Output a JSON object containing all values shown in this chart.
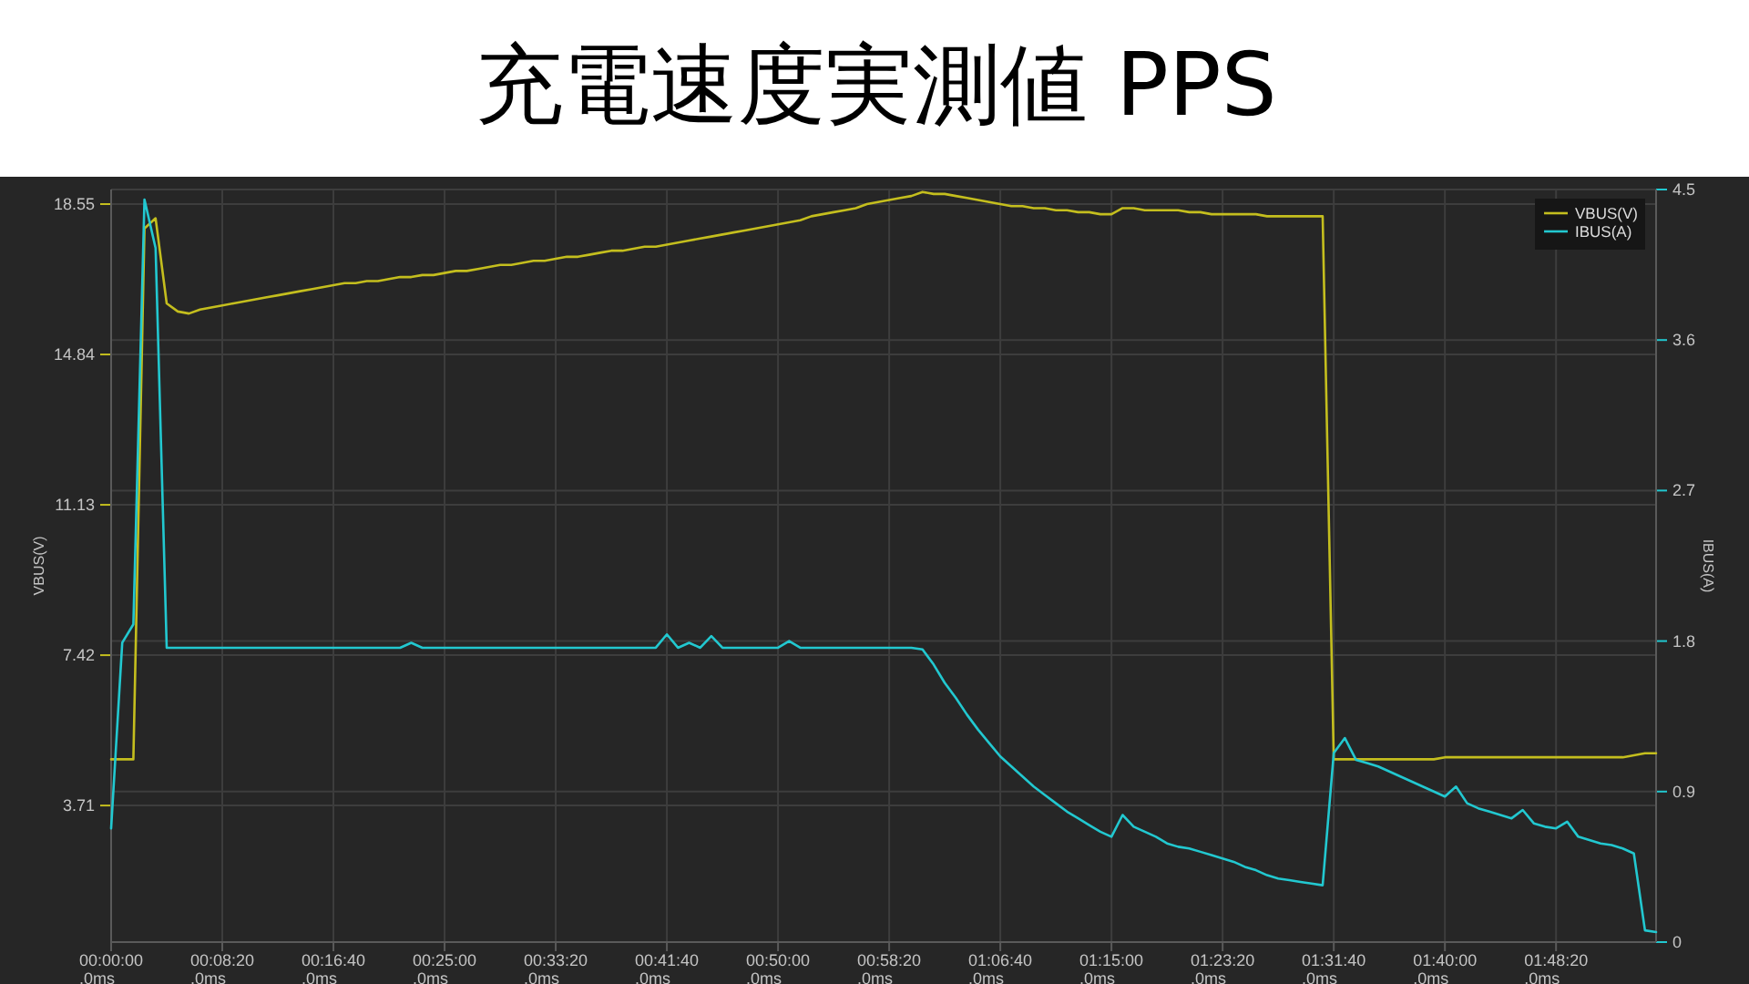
{
  "chart_data": {
    "type": "line",
    "title": "充電速度実測値 PPS",
    "ylabel": "VBUS(V)",
    "y2label": "IBUS(A)",
    "categories": [
      "00:00:00\n.0ms",
      null,
      null,
      null,
      null,
      null,
      null,
      null,
      null,
      null,
      "00:08:20\n.0ms",
      null,
      null,
      null,
      null,
      null,
      null,
      null,
      null,
      null,
      "00:16:40\n.0ms",
      null,
      null,
      null,
      null,
      null,
      null,
      null,
      null,
      null,
      "00:25:00\n.0ms",
      null,
      null,
      null,
      null,
      null,
      null,
      null,
      null,
      null,
      "00:33:20\n.0ms",
      null,
      null,
      null,
      null,
      null,
      null,
      null,
      null,
      null,
      "00:41:40\n.0ms",
      null,
      null,
      null,
      null,
      null,
      null,
      null,
      null,
      null,
      "00:50:00\n.0ms",
      null,
      null,
      null,
      null,
      null,
      null,
      null,
      null,
      null,
      "00:58:20\n.0ms",
      null,
      null,
      null,
      null,
      null,
      null,
      null,
      null,
      null,
      "01:06:40\n.0ms",
      null,
      null,
      null,
      null,
      null,
      null,
      null,
      null,
      null,
      "01:15:00\n.0ms",
      null,
      null,
      null,
      null,
      null,
      null,
      null,
      null,
      null,
      "01:23:20\n.0ms",
      null,
      null,
      null,
      null,
      null,
      null,
      null,
      null,
      null,
      "01:31:40\n.0ms",
      null,
      null,
      null,
      null,
      null,
      null,
      null,
      null,
      null,
      "01:40:00\n.0ms",
      null,
      null,
      null,
      null,
      null,
      null,
      null,
      null,
      null,
      "01:48:20\n.0ms",
      null,
      null,
      null,
      null,
      null,
      null,
      null,
      null,
      null
    ],
    "ylim": [
      0.34,
      18.91
    ],
    "yticks": [
      3.71,
      7.42,
      11.13,
      14.84,
      18.55
    ],
    "y2lim": [
      0,
      4.5
    ],
    "y2ticks": [
      0,
      0.9,
      1.8,
      2.7,
      3.6,
      4.5
    ],
    "grid": true,
    "legend": "top right",
    "series": [
      {
        "name": "VBUS(V)",
        "color": "#c4be1e",
        "values": [
          4.85,
          4.85,
          4.85,
          17.95,
          18.2,
          16.1,
          15.9,
          15.85,
          15.95,
          16.0,
          16.05,
          16.1,
          16.15,
          16.2,
          16.25,
          16.3,
          16.35,
          16.4,
          16.45,
          16.5,
          16.55,
          16.6,
          16.6,
          16.65,
          16.65,
          16.7,
          16.75,
          16.75,
          16.8,
          16.8,
          16.85,
          16.9,
          16.9,
          16.95,
          17.0,
          17.05,
          17.05,
          17.1,
          17.15,
          17.15,
          17.2,
          17.25,
          17.25,
          17.3,
          17.35,
          17.4,
          17.4,
          17.45,
          17.5,
          17.5,
          17.55,
          17.6,
          17.65,
          17.7,
          17.75,
          17.8,
          17.85,
          17.9,
          17.95,
          18.0,
          18.05,
          18.1,
          18.15,
          18.25,
          18.3,
          18.35,
          18.4,
          18.45,
          18.55,
          18.6,
          18.65,
          18.7,
          18.75,
          18.85,
          18.8,
          18.8,
          18.75,
          18.7,
          18.65,
          18.6,
          18.55,
          18.5,
          18.5,
          18.45,
          18.45,
          18.4,
          18.4,
          18.35,
          18.35,
          18.3,
          18.3,
          18.45,
          18.45,
          18.4,
          18.4,
          18.4,
          18.4,
          18.35,
          18.35,
          18.3,
          18.3,
          18.3,
          18.3,
          18.3,
          18.25,
          18.25,
          18.25,
          18.25,
          18.25,
          18.25,
          4.85,
          4.85,
          4.85,
          4.85,
          4.85,
          4.85,
          4.85,
          4.85,
          4.85,
          4.85,
          4.9,
          4.9,
          4.9,
          4.9,
          4.9,
          4.9,
          4.9,
          4.9,
          4.9,
          4.9,
          4.9,
          4.9,
          4.9,
          4.9,
          4.9,
          4.9,
          4.9,
          4.95,
          5.0,
          5.0
        ]
      },
      {
        "name": "IBUS(A)",
        "color": "#22c8d0",
        "axis": "y2",
        "values": [
          0.68,
          1.79,
          1.9,
          4.44,
          4.15,
          1.76,
          1.76,
          1.76,
          1.76,
          1.76,
          1.76,
          1.76,
          1.76,
          1.76,
          1.76,
          1.76,
          1.76,
          1.76,
          1.76,
          1.76,
          1.76,
          1.76,
          1.76,
          1.76,
          1.76,
          1.76,
          1.76,
          1.79,
          1.76,
          1.76,
          1.76,
          1.76,
          1.76,
          1.76,
          1.76,
          1.76,
          1.76,
          1.76,
          1.76,
          1.76,
          1.76,
          1.76,
          1.76,
          1.76,
          1.76,
          1.76,
          1.76,
          1.76,
          1.76,
          1.76,
          1.84,
          1.76,
          1.79,
          1.76,
          1.83,
          1.76,
          1.76,
          1.76,
          1.76,
          1.76,
          1.76,
          1.8,
          1.76,
          1.76,
          1.76,
          1.76,
          1.76,
          1.76,
          1.76,
          1.76,
          1.76,
          1.76,
          1.76,
          1.75,
          1.66,
          1.55,
          1.46,
          1.36,
          1.27,
          1.19,
          1.11,
          1.05,
          0.99,
          0.93,
          0.88,
          0.83,
          0.78,
          0.74,
          0.7,
          0.66,
          0.63,
          0.76,
          0.69,
          0.66,
          0.63,
          0.59,
          0.57,
          0.56,
          0.54,
          0.52,
          0.5,
          0.48,
          0.45,
          0.43,
          0.4,
          0.38,
          0.37,
          0.36,
          0.35,
          0.34,
          1.13,
          1.22,
          1.09,
          1.07,
          1.05,
          1.02,
          0.99,
          0.96,
          0.93,
          0.9,
          0.87,
          0.93,
          0.83,
          0.8,
          0.78,
          0.76,
          0.74,
          0.79,
          0.71,
          0.69,
          0.68,
          0.72,
          0.63,
          0.61,
          0.59,
          0.58,
          0.56,
          0.53,
          0.07,
          0.06
        ]
      }
    ]
  }
}
